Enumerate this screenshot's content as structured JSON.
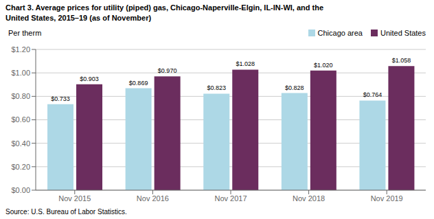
{
  "chart_data": {
    "type": "bar",
    "title": "Chart 3. Average prices for utility (piped) gas, Chicago-Naperville-Elgin, IL-IN-WI, and the\nUnited States, 2015–19 (as of November)",
    "ylabel": "Per therm",
    "annotations": [
      "Source: U.S. Bureau of Labor Statistics."
    ],
    "categories": [
      "Nov 2015",
      "Nov 2016",
      "Nov 2017",
      "Nov 2018",
      "Nov 2019"
    ],
    "series": [
      {
        "name": "Chicago area",
        "color": "#add8e6",
        "values": [
          0.733,
          0.869,
          0.823,
          0.828,
          0.764
        ],
        "value_labels": [
          "$0.733",
          "$0.869",
          "$0.823",
          "$0.828",
          "$0.764"
        ]
      },
      {
        "name": "United States",
        "color": "#6b2d5e",
        "values": [
          0.903,
          0.97,
          1.028,
          1.02,
          1.058
        ],
        "value_labels": [
          "$0.903",
          "$0.970",
          "$1.028",
          "$1.020",
          "$1.058"
        ]
      }
    ],
    "ylim": [
      0.0,
      1.2
    ],
    "yticks": [
      {
        "value": 0.0,
        "label": "$0.00"
      },
      {
        "value": 0.2,
        "label": "$0.20"
      },
      {
        "value": 0.4,
        "label": "$0.40"
      },
      {
        "value": 0.6,
        "label": "$0.60"
      },
      {
        "value": 0.8,
        "label": "$0.80"
      },
      {
        "value": 1.0,
        "label": "$1.00"
      },
      {
        "value": 1.2,
        "label": "$1.20"
      }
    ],
    "grid": true,
    "legend": "upper right",
    "data_labels": true
  }
}
